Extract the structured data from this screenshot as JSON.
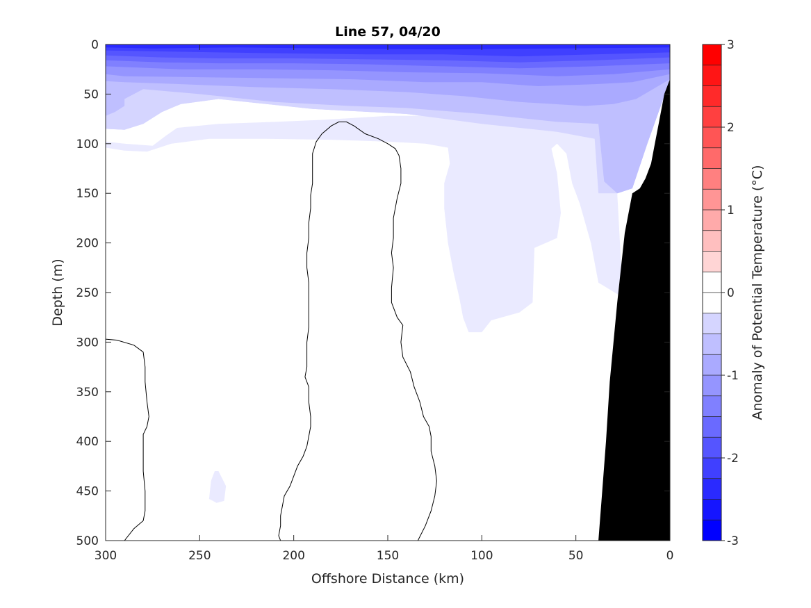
{
  "chart_data": {
    "type": "heatmap",
    "subtype": "filled-contour",
    "title": "Line 57, 04/20",
    "xlabel": "Offshore Distance (km)",
    "ylabel": "Depth (m)",
    "colorbar_label": "Anomaly of Potential Temperature (°C)",
    "xlim": [
      300,
      0
    ],
    "ylim": [
      500,
      0
    ],
    "x_reversed": true,
    "y_reversed": true,
    "x_ticks": [
      300,
      250,
      200,
      150,
      100,
      50,
      0
    ],
    "y_ticks": [
      0,
      50,
      100,
      150,
      200,
      250,
      300,
      350,
      400,
      450,
      500
    ],
    "colorbar_range": [
      -3,
      3
    ],
    "colorbar_ticks": [
      -3,
      -2,
      -1,
      0,
      1,
      2,
      3
    ],
    "contour_step": 0.25,
    "colormap": "blue-white-red",
    "colors": {
      "cold": "#0000ff",
      "neutral": "#ffffff",
      "warm": "#ff0000",
      "bathymetry": "#000000",
      "contour_line": "#000000"
    },
    "surface_layers": [
      {
        "level": -2.5,
        "points": [
          [
            300,
            0
          ],
          [
            275,
            0
          ],
          [
            230,
            0
          ],
          [
            180,
            0
          ],
          [
            120,
            0
          ],
          [
            60,
            0
          ],
          [
            0,
            0
          ],
          [
            0,
            3
          ],
          [
            60,
            4
          ],
          [
            120,
            5
          ],
          [
            180,
            4
          ],
          [
            230,
            3
          ],
          [
            275,
            4
          ],
          [
            300,
            3
          ]
        ]
      },
      {
        "level": -2.25,
        "points": [
          [
            300,
            0
          ],
          [
            0,
            0
          ],
          [
            0,
            8
          ],
          [
            40,
            10
          ],
          [
            80,
            12
          ],
          [
            120,
            10
          ],
          [
            160,
            10
          ],
          [
            200,
            9
          ],
          [
            240,
            8
          ],
          [
            270,
            7
          ],
          [
            300,
            6
          ]
        ]
      },
      {
        "level": -2.0,
        "points": [
          [
            300,
            0
          ],
          [
            0,
            0
          ],
          [
            0,
            13
          ],
          [
            40,
            16
          ],
          [
            80,
            18
          ],
          [
            120,
            16
          ],
          [
            160,
            15
          ],
          [
            200,
            14
          ],
          [
            240,
            14
          ],
          [
            270,
            13
          ],
          [
            300,
            11
          ]
        ]
      },
      {
        "level": -1.75,
        "points": [
          [
            300,
            0
          ],
          [
            0,
            0
          ],
          [
            0,
            19
          ],
          [
            40,
            22
          ],
          [
            80,
            24
          ],
          [
            120,
            22
          ],
          [
            160,
            20
          ],
          [
            200,
            19
          ],
          [
            240,
            19
          ],
          [
            270,
            18
          ],
          [
            300,
            16
          ]
        ]
      },
      {
        "level": -1.5,
        "points": [
          [
            300,
            0
          ],
          [
            0,
            0
          ],
          [
            0,
            25
          ],
          [
            30,
            30
          ],
          [
            60,
            32
          ],
          [
            100,
            29
          ],
          [
            140,
            28
          ],
          [
            180,
            26
          ],
          [
            220,
            25
          ],
          [
            260,
            25
          ],
          [
            300,
            22
          ]
        ]
      },
      {
        "level": -1.25,
        "points": [
          [
            300,
            0
          ],
          [
            0,
            0
          ],
          [
            0,
            30
          ],
          [
            20,
            38
          ],
          [
            40,
            40
          ],
          [
            70,
            42
          ],
          [
            100,
            38
          ],
          [
            130,
            38
          ],
          [
            170,
            35
          ],
          [
            210,
            34
          ],
          [
            250,
            33
          ],
          [
            290,
            32
          ],
          [
            300,
            30
          ]
        ]
      },
      {
        "level": -1.0,
        "points": [
          [
            300,
            0
          ],
          [
            0,
            0
          ],
          [
            0,
            35
          ],
          [
            18,
            55
          ],
          [
            30,
            60
          ],
          [
            45,
            62
          ],
          [
            80,
            58
          ],
          [
            110,
            52
          ],
          [
            140,
            48
          ],
          [
            180,
            45
          ],
          [
            220,
            43
          ],
          [
            260,
            40
          ],
          [
            290,
            38
          ],
          [
            300,
            37
          ]
        ]
      },
      {
        "level": -0.75,
        "points": [
          [
            300,
            0
          ],
          [
            0,
            0
          ],
          [
            0,
            36
          ],
          [
            12,
            100
          ],
          [
            20,
            145
          ],
          [
            28,
            150
          ],
          [
            35,
            138
          ],
          [
            38,
            80
          ],
          [
            60,
            78
          ],
          [
            100,
            70
          ],
          [
            140,
            64
          ],
          [
            170,
            62
          ],
          [
            210,
            58
          ],
          [
            250,
            50
          ],
          [
            280,
            45
          ],
          [
            290,
            55
          ],
          [
            290,
            62
          ],
          [
            295,
            68
          ],
          [
            300,
            72
          ]
        ]
      },
      {
        "level": -0.5,
        "points": [
          [
            300,
            0
          ],
          [
            0,
            0
          ],
          [
            0,
            36
          ],
          [
            30,
            110
          ],
          [
            28,
            150
          ],
          [
            38,
            150
          ],
          [
            40,
            95
          ],
          [
            60,
            88
          ],
          [
            100,
            80
          ],
          [
            140,
            70
          ],
          [
            190,
            65
          ],
          [
            240,
            55
          ],
          [
            260,
            60
          ],
          [
            270,
            68
          ],
          [
            280,
            80
          ],
          [
            290,
            86
          ],
          [
            300,
            85
          ]
        ]
      }
    ],
    "cold_regions": [
      {
        "level": -0.25,
        "points": [
          [
            300,
            98
          ],
          [
            290,
            100
          ],
          [
            275,
            102
          ],
          [
            268,
            92
          ],
          [
            262,
            84
          ],
          [
            240,
            80
          ],
          [
            210,
            78
          ],
          [
            185,
            76
          ],
          [
            150,
            72
          ],
          [
            120,
            72
          ],
          [
            100,
            75
          ],
          [
            80,
            80
          ],
          [
            60,
            86
          ],
          [
            40,
            92
          ],
          [
            30,
            95
          ],
          [
            28,
            150
          ],
          [
            25,
            255
          ],
          [
            38,
            240
          ],
          [
            42,
            200
          ],
          [
            48,
            160
          ],
          [
            52,
            140
          ],
          [
            55,
            110
          ],
          [
            60,
            100
          ],
          [
            63,
            105
          ],
          [
            60,
            130
          ],
          [
            58,
            170
          ],
          [
            60,
            195
          ],
          [
            72,
            205
          ],
          [
            73,
            260
          ],
          [
            80,
            270
          ],
          [
            95,
            278
          ],
          [
            100,
            290
          ],
          [
            107,
            290
          ],
          [
            110,
            275
          ],
          [
            112,
            255
          ],
          [
            115,
            230
          ],
          [
            118,
            200
          ],
          [
            120,
            165
          ],
          [
            120,
            140
          ],
          [
            117,
            120
          ],
          [
            118,
            104
          ],
          [
            130,
            100
          ],
          [
            150,
            98
          ],
          [
            180,
            96
          ],
          [
            215,
            95
          ],
          [
            245,
            95
          ],
          [
            265,
            100
          ],
          [
            278,
            108
          ],
          [
            290,
            107
          ],
          [
            300,
            104
          ]
        ]
      },
      {
        "level": -0.25,
        "points": [
          [
            242,
            430
          ],
          [
            240,
            430
          ],
          [
            236,
            445
          ],
          [
            237,
            460
          ],
          [
            241,
            462
          ],
          [
            245,
            458
          ],
          [
            244,
            440
          ]
        ]
      }
    ],
    "zero_contours": [
      [
        [
          300,
          297
        ],
        [
          294,
          298
        ],
        [
          285,
          303
        ],
        [
          280,
          310
        ],
        [
          279,
          325
        ],
        [
          279,
          340
        ],
        [
          278,
          360
        ],
        [
          277,
          375
        ],
        [
          278,
          385
        ],
        [
          280,
          393
        ],
        [
          280,
          410
        ],
        [
          280,
          430
        ],
        [
          279,
          450
        ],
        [
          279,
          470
        ],
        [
          280,
          480
        ],
        [
          285,
          488
        ],
        [
          290,
          500
        ]
      ],
      [
        [
          207,
          500
        ],
        [
          208,
          495
        ],
        [
          207,
          485
        ],
        [
          207,
          475
        ],
        [
          206,
          465
        ],
        [
          205,
          455
        ],
        [
          202,
          445
        ],
        [
          200,
          435
        ],
        [
          198,
          425
        ],
        [
          195,
          415
        ],
        [
          193,
          405
        ],
        [
          192,
          395
        ],
        [
          191,
          385
        ],
        [
          191,
          375
        ],
        [
          192,
          360
        ],
        [
          192,
          345
        ],
        [
          194,
          335
        ],
        [
          193,
          325
        ],
        [
          193,
          310
        ],
        [
          193,
          300
        ],
        [
          192,
          285
        ],
        [
          192,
          270
        ],
        [
          192,
          255
        ],
        [
          192,
          240
        ],
        [
          193,
          225
        ],
        [
          193,
          210
        ],
        [
          192,
          195
        ],
        [
          192,
          180
        ],
        [
          191,
          165
        ],
        [
          191,
          152
        ],
        [
          190,
          140
        ],
        [
          190,
          125
        ],
        [
          190,
          110
        ],
        [
          188,
          98
        ],
        [
          185,
          90
        ],
        [
          180,
          82
        ],
        [
          176,
          78
        ],
        [
          172,
          78
        ],
        [
          168,
          82
        ],
        [
          162,
          90
        ],
        [
          155,
          95
        ],
        [
          150,
          100
        ],
        [
          146,
          105
        ],
        [
          144,
          112
        ],
        [
          143,
          125
        ],
        [
          143,
          140
        ],
        [
          145,
          155
        ],
        [
          147,
          175
        ],
        [
          147,
          195
        ],
        [
          148,
          210
        ],
        [
          147,
          225
        ],
        [
          148,
          245
        ],
        [
          148,
          260
        ],
        [
          145,
          275
        ],
        [
          142,
          283
        ],
        [
          143,
          300
        ],
        [
          142,
          315
        ],
        [
          138,
          330
        ],
        [
          136,
          345
        ],
        [
          133,
          360
        ],
        [
          131,
          375
        ],
        [
          128,
          385
        ],
        [
          127,
          395
        ],
        [
          127,
          410
        ],
        [
          125,
          425
        ],
        [
          124,
          440
        ],
        [
          125,
          455
        ],
        [
          127,
          470
        ],
        [
          130,
          485
        ],
        [
          134,
          500
        ]
      ]
    ],
    "bathymetry": [
      [
        0,
        35
      ],
      [
        3,
        50
      ],
      [
        6,
        80
      ],
      [
        8,
        100
      ],
      [
        10,
        120
      ],
      [
        13,
        135
      ],
      [
        16,
        145
      ],
      [
        20,
        150
      ],
      [
        24,
        190
      ],
      [
        28,
        260
      ],
      [
        30,
        300
      ],
      [
        32,
        340
      ],
      [
        34,
        400
      ],
      [
        36,
        450
      ],
      [
        38,
        500
      ],
      [
        0,
        500
      ]
    ]
  }
}
